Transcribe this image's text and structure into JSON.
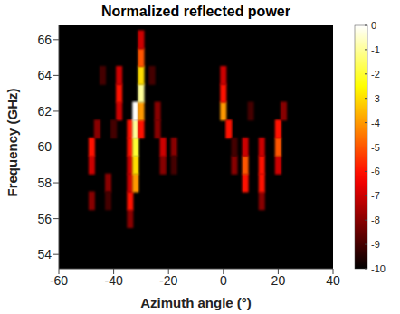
{
  "chart_data": {
    "type": "heatmap",
    "title": "Normalized reflected power",
    "x_label": "Azimuth angle (°)",
    "y_label": "Frequency (GHz)",
    "xlim": [
      -60,
      40
    ],
    "xticks": [
      -60,
      -40,
      -20,
      0,
      20,
      40
    ],
    "ylim": [
      53.2,
      66.8
    ],
    "yticks": [
      54,
      56,
      58,
      60,
      62,
      64,
      66
    ],
    "color": "hot",
    "x_step": 2,
    "y_step": 1,
    "cells": [
      [
        -34,
        56,
        -8
      ],
      [
        -34,
        57,
        -6
      ],
      [
        -34,
        58,
        -7
      ],
      [
        -34,
        59,
        -7
      ],
      [
        -34,
        60,
        -6
      ],
      [
        -34,
        61,
        -6
      ],
      [
        -32,
        58,
        -4
      ],
      [
        -32,
        59,
        -3
      ],
      [
        -32,
        60,
        -2
      ],
      [
        -32,
        61,
        -1
      ],
      [
        -32,
        62,
        0
      ],
      [
        -30,
        61,
        -6
      ],
      [
        -30,
        62,
        -4
      ],
      [
        -30,
        63,
        -1
      ],
      [
        -30,
        64,
        -3
      ],
      [
        -30,
        65,
        -5
      ],
      [
        -30,
        66,
        -7
      ],
      [
        -38,
        62,
        -7
      ],
      [
        -38,
        63,
        -6
      ],
      [
        -38,
        64,
        -7
      ],
      [
        -40,
        61,
        -9
      ],
      [
        -48,
        59,
        -7
      ],
      [
        -48,
        60,
        -6
      ],
      [
        -46,
        61,
        -8
      ],
      [
        -48,
        57,
        -8
      ],
      [
        -42,
        58,
        -8
      ],
      [
        -42,
        57,
        -9
      ],
      [
        -44,
        64,
        -9
      ],
      [
        -24,
        62,
        -8
      ],
      [
        -24,
        61,
        -8
      ],
      [
        -26,
        64,
        -9
      ],
      [
        -22,
        59,
        -8
      ],
      [
        -22,
        60,
        -7
      ],
      [
        -18,
        60,
        -8
      ],
      [
        -18,
        59,
        -9
      ],
      [
        0,
        62,
        -4
      ],
      [
        0,
        63,
        -6
      ],
      [
        0,
        64,
        -7
      ],
      [
        2,
        61,
        -6
      ],
      [
        4,
        59,
        -8
      ],
      [
        4,
        60,
        -9
      ],
      [
        8,
        58,
        -6
      ],
      [
        8,
        59,
        -5
      ],
      [
        8,
        60,
        -7
      ],
      [
        14,
        57,
        -8
      ],
      [
        14,
        58,
        -6
      ],
      [
        14,
        59,
        -6
      ],
      [
        14,
        60,
        -7
      ],
      [
        20,
        59,
        -7
      ],
      [
        20,
        60,
        -5
      ],
      [
        20,
        61,
        -6
      ],
      [
        22,
        62,
        -8
      ],
      [
        10,
        62,
        -9
      ]
    ],
    "colorbar": {
      "range": [
        -10,
        0
      ],
      "ticks": [
        0,
        -1,
        -2,
        -3,
        -4,
        -5,
        -6,
        -7,
        -8,
        -9,
        -10
      ]
    }
  }
}
